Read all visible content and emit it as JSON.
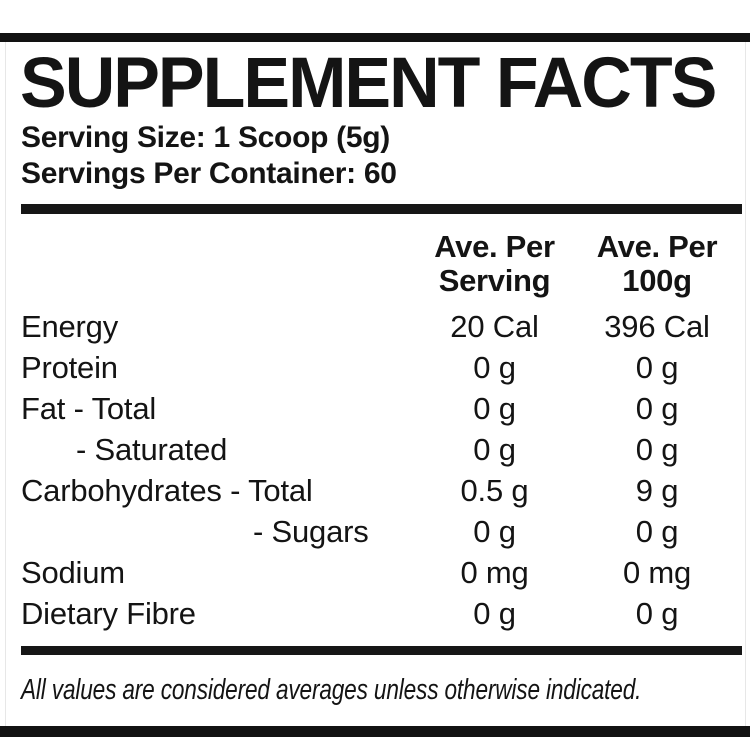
{
  "label": {
    "title": "SUPPLEMENT FACTS",
    "serving_size": "Serving Size: 1 Scoop (5g)",
    "servings_per_container": "Servings Per Container: 60",
    "table": {
      "columns": [
        {
          "line1": "Ave. Per",
          "line2": "Serving"
        },
        {
          "line1": "Ave. Per",
          "line2": "100g"
        }
      ],
      "rows": [
        {
          "label": "Energy",
          "per_serving": "20 Cal",
          "per_100g": "396 Cal"
        },
        {
          "label": "Protein",
          "per_serving": "0 g",
          "per_100g": "0 g"
        },
        {
          "label": "Fat - Total",
          "per_serving": "0 g",
          "per_100g": "0 g"
        },
        {
          "label": "- Saturated",
          "per_serving": "0 g",
          "per_100g": "0 g"
        },
        {
          "label": "Carbohydrates - Total",
          "per_serving": "0.5 g",
          "per_100g": "9 g"
        },
        {
          "label": "- Sugars",
          "per_serving": "0 g",
          "per_100g": "0 g"
        },
        {
          "label": "Sodium",
          "per_serving": "0 mg",
          "per_100g": "0 mg"
        },
        {
          "label": "Dietary Fibre",
          "per_serving": "0 g",
          "per_100g": "0 g"
        }
      ]
    },
    "footnote": "All values are considered averages unless otherwise indicated."
  }
}
